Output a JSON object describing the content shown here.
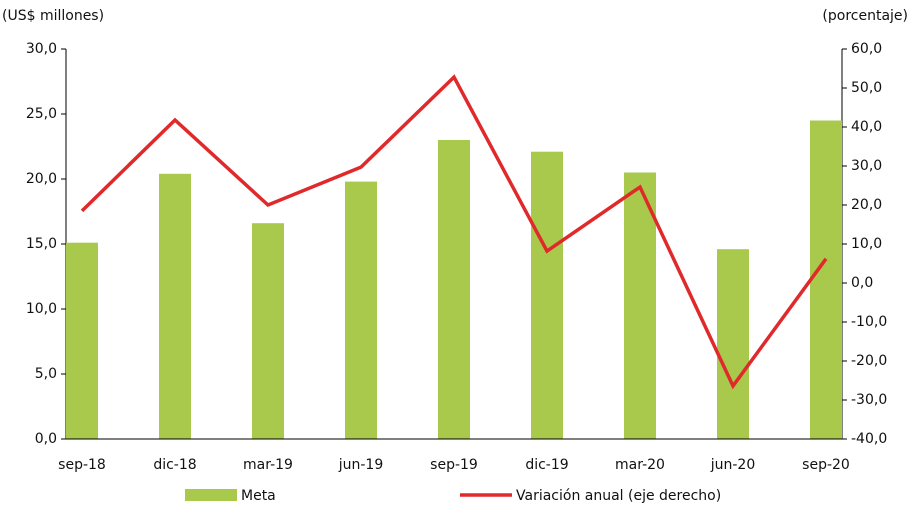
{
  "chart_data": {
    "type": "bar-line",
    "y_label": "(US$ millones)",
    "y2_label": "(porcentaje)",
    "categories": [
      "sep-18",
      "dic-18",
      "mar-19",
      "jun-19",
      "sep-19",
      "dic-19",
      "mar-20",
      "jun-20",
      "sep-20"
    ],
    "series": [
      {
        "name": "Meta",
        "type": "bar",
        "color": "#a8c94b",
        "values": [
          15.1,
          20.4,
          16.6,
          19.8,
          23.0,
          22.1,
          20.5,
          14.6,
          24.5
        ]
      },
      {
        "name": "Variación anual (eje derecho)",
        "type": "line",
        "axis": "y2",
        "color": "#e0292b",
        "values": [
          18.5,
          41.8,
          20.0,
          29.7,
          52.8,
          8.2,
          24.6,
          -26.4,
          6.2
        ]
      }
    ],
    "ylim": [
      0,
      30
    ],
    "yticks": [
      {
        "value": 0,
        "label": "0,0"
      },
      {
        "value": 5,
        "label": "5,0"
      },
      {
        "value": 10,
        "label": "10,0"
      },
      {
        "value": 15,
        "label": "15,0"
      },
      {
        "value": 20,
        "label": "20,0"
      },
      {
        "value": 25,
        "label": "25,0"
      },
      {
        "value": 30,
        "label": "30,0"
      }
    ],
    "y2lim": [
      -40,
      60
    ],
    "y2ticks": [
      {
        "value": -40,
        "label": "-40,0"
      },
      {
        "value": -30,
        "label": "-30,0"
      },
      {
        "value": -20,
        "label": "-20,0"
      },
      {
        "value": -10,
        "label": "-10,0"
      },
      {
        "value": 0,
        "label": "0,0"
      },
      {
        "value": 10,
        "label": "10,0"
      },
      {
        "value": 20,
        "label": "20,0"
      },
      {
        "value": 30,
        "label": "30,0"
      },
      {
        "value": 40,
        "label": "40,0"
      },
      {
        "value": 50,
        "label": "50,0"
      },
      {
        "value": 60,
        "label": "60,0"
      }
    ],
    "grid": false,
    "legend": "bottom"
  }
}
